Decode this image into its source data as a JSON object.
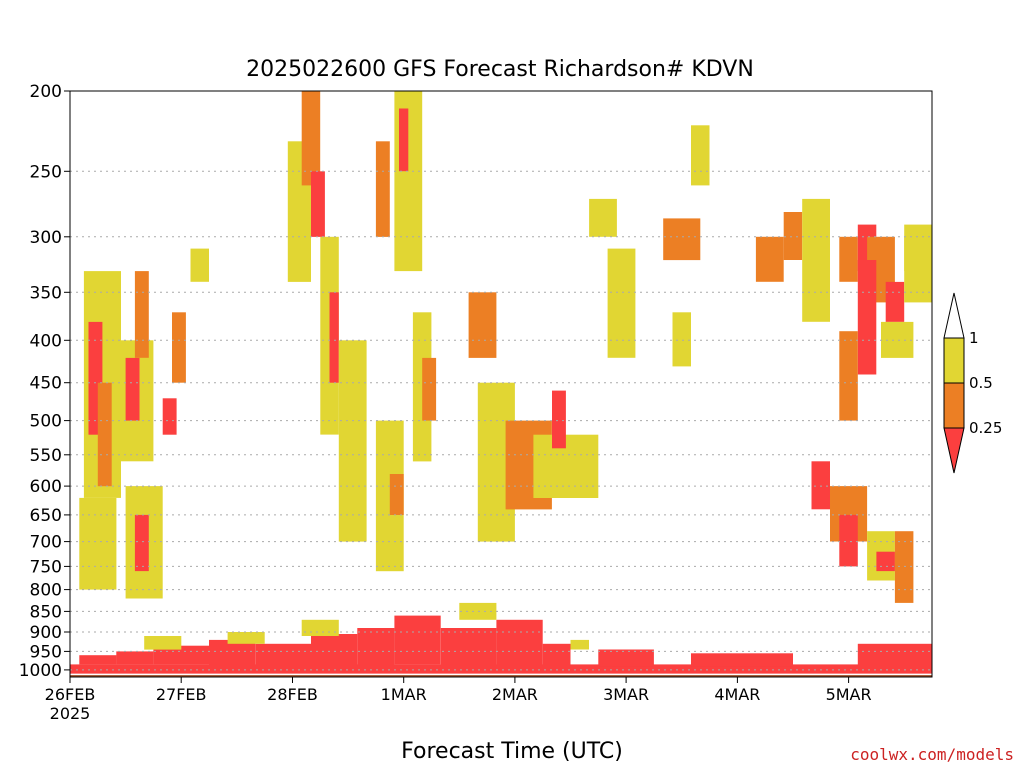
{
  "chart_data": {
    "type": "heatmap",
    "title": "2025022600 GFS Forecast Richardson# KDVN",
    "xlabel": "Forecast Time (UTC)",
    "ylabel": "",
    "x_ticks": [
      {
        "label": "26FEB",
        "sub": "2025",
        "hours": 0
      },
      {
        "label": "27FEB",
        "sub": "",
        "hours": 24
      },
      {
        "label": "28FEB",
        "sub": "",
        "hours": 48
      },
      {
        "label": "1MAR",
        "sub": "",
        "hours": 72
      },
      {
        "label": "2MAR",
        "sub": "",
        "hours": 96
      },
      {
        "label": "3MAR",
        "sub": "",
        "hours": 120
      },
      {
        "label": "4MAR",
        "sub": "",
        "hours": 144
      },
      {
        "label": "5MAR",
        "sub": "",
        "hours": 168
      }
    ],
    "xlim_hours": [
      0,
      186
    ],
    "y_ticks": [
      200,
      250,
      300,
      350,
      400,
      450,
      500,
      550,
      600,
      650,
      700,
      750,
      800,
      850,
      900,
      950,
      1000
    ],
    "ylim_hPa": [
      200,
      1020
    ],
    "y_scale": "log",
    "grid": "dotted horizontal lines at pressure ticks",
    "colorbar": {
      "labels": [
        "1",
        "0.5",
        "0.25"
      ],
      "bins": [
        {
          "range": "0.5-1",
          "color": "#e1d633"
        },
        {
          "range": "0.25-0.5",
          "color": "#ec7f24"
        },
        {
          "range": "<0.25",
          "color": "#fb3f3f"
        }
      ],
      "above_color": "#ffffff",
      "position": "right"
    },
    "ground_color": "#9a4b25",
    "colors": {
      "yellow": "#e1d633",
      "orange": "#ec7f24",
      "red": "#fb3f3f",
      "ground": "#9a4b25"
    },
    "patches": [
      {
        "cat": "r",
        "t": [
          0,
          186
        ],
        "p": [
          985,
          1020
        ]
      },
      {
        "cat": "r",
        "t": [
          2,
          10
        ],
        "p": [
          960,
          985
        ]
      },
      {
        "cat": "r",
        "t": [
          10,
          18
        ],
        "p": [
          950,
          985
        ]
      },
      {
        "cat": "r",
        "t": [
          18,
          30
        ],
        "p": [
          935,
          985
        ]
      },
      {
        "cat": "r",
        "t": [
          30,
          40
        ],
        "p": [
          920,
          985
        ]
      },
      {
        "cat": "r",
        "t": [
          40,
          52
        ],
        "p": [
          930,
          985
        ]
      },
      {
        "cat": "r",
        "t": [
          52,
          62
        ],
        "p": [
          905,
          985
        ]
      },
      {
        "cat": "r",
        "t": [
          62,
          70
        ],
        "p": [
          890,
          985
        ]
      },
      {
        "cat": "r",
        "t": [
          70,
          80
        ],
        "p": [
          860,
          985
        ]
      },
      {
        "cat": "r",
        "t": [
          80,
          92
        ],
        "p": [
          890,
          985
        ]
      },
      {
        "cat": "r",
        "t": [
          92,
          102
        ],
        "p": [
          870,
          985
        ]
      },
      {
        "cat": "r",
        "t": [
          102,
          108
        ],
        "p": [
          930,
          985
        ]
      },
      {
        "cat": "r",
        "t": [
          114,
          126
        ],
        "p": [
          945,
          990
        ]
      },
      {
        "cat": "r",
        "t": [
          134,
          156
        ],
        "p": [
          955,
          990
        ]
      },
      {
        "cat": "r",
        "t": [
          170,
          186
        ],
        "p": [
          930,
          990
        ]
      },
      {
        "cat": "y",
        "t": [
          16,
          24
        ],
        "p": [
          910,
          945
        ]
      },
      {
        "cat": "y",
        "t": [
          34,
          42
        ],
        "p": [
          900,
          930
        ]
      },
      {
        "cat": "y",
        "t": [
          50,
          58
        ],
        "p": [
          870,
          910
        ]
      },
      {
        "cat": "y",
        "t": [
          84,
          92
        ],
        "p": [
          830,
          870
        ]
      },
      {
        "cat": "y",
        "t": [
          108,
          112
        ],
        "p": [
          920,
          945
        ]
      },
      {
        "cat": "y",
        "t": [
          2,
          10
        ],
        "p": [
          620,
          800
        ]
      },
      {
        "cat": "y",
        "t": [
          3,
          11
        ],
        "p": [
          330,
          620
        ]
      },
      {
        "cat": "r",
        "t": [
          4,
          7
        ],
        "p": [
          380,
          520
        ]
      },
      {
        "cat": "o",
        "t": [
          6,
          9
        ],
        "p": [
          450,
          600
        ]
      },
      {
        "cat": "y",
        "t": [
          11,
          18
        ],
        "p": [
          400,
          560
        ]
      },
      {
        "cat": "r",
        "t": [
          12,
          15
        ],
        "p": [
          420,
          500
        ]
      },
      {
        "cat": "o",
        "t": [
          14,
          17
        ],
        "p": [
          330,
          420
        ]
      },
      {
        "cat": "y",
        "t": [
          12,
          20
        ],
        "p": [
          600,
          820
        ]
      },
      {
        "cat": "r",
        "t": [
          14,
          17
        ],
        "p": [
          650,
          760
        ]
      },
      {
        "cat": "r",
        "t": [
          20,
          23
        ],
        "p": [
          470,
          520
        ]
      },
      {
        "cat": "o",
        "t": [
          22,
          25
        ],
        "p": [
          370,
          450
        ]
      },
      {
        "cat": "y",
        "t": [
          26,
          30
        ],
        "p": [
          310,
          340
        ]
      },
      {
        "cat": "y",
        "t": [
          47,
          52
        ],
        "p": [
          230,
          340
        ]
      },
      {
        "cat": "o",
        "t": [
          50,
          54
        ],
        "p": [
          200,
          260
        ]
      },
      {
        "cat": "r",
        "t": [
          52,
          55
        ],
        "p": [
          250,
          300
        ]
      },
      {
        "cat": "y",
        "t": [
          54,
          58
        ],
        "p": [
          300,
          520
        ]
      },
      {
        "cat": "r",
        "t": [
          56,
          58
        ],
        "p": [
          350,
          450
        ]
      },
      {
        "cat": "y",
        "t": [
          58,
          64
        ],
        "p": [
          400,
          700
        ]
      },
      {
        "cat": "o",
        "t": [
          66,
          69
        ],
        "p": [
          230,
          300
        ]
      },
      {
        "cat": "y",
        "t": [
          70,
          76
        ],
        "p": [
          200,
          330
        ]
      },
      {
        "cat": "r",
        "t": [
          71,
          73
        ],
        "p": [
          210,
          250
        ]
      },
      {
        "cat": "y",
        "t": [
          74,
          78
        ],
        "p": [
          370,
          560
        ]
      },
      {
        "cat": "o",
        "t": [
          76,
          79
        ],
        "p": [
          420,
          500
        ]
      },
      {
        "cat": "y",
        "t": [
          66,
          72
        ],
        "p": [
          500,
          760
        ]
      },
      {
        "cat": "o",
        "t": [
          69,
          72
        ],
        "p": [
          580,
          650
        ]
      },
      {
        "cat": "o",
        "t": [
          86,
          92
        ],
        "p": [
          350,
          420
        ]
      },
      {
        "cat": "y",
        "t": [
          88,
          96
        ],
        "p": [
          450,
          700
        ]
      },
      {
        "cat": "o",
        "t": [
          94,
          104
        ],
        "p": [
          500,
          640
        ]
      },
      {
        "cat": "y",
        "t": [
          100,
          114
        ],
        "p": [
          520,
          620
        ]
      },
      {
        "cat": "r",
        "t": [
          104,
          107
        ],
        "p": [
          460,
          540
        ]
      },
      {
        "cat": "y",
        "t": [
          112,
          118
        ],
        "p": [
          270,
          300
        ]
      },
      {
        "cat": "y",
        "t": [
          116,
          122
        ],
        "p": [
          310,
          420
        ]
      },
      {
        "cat": "o",
        "t": [
          128,
          136
        ],
        "p": [
          285,
          320
        ]
      },
      {
        "cat": "y",
        "t": [
          134,
          138
        ],
        "p": [
          220,
          260
        ]
      },
      {
        "cat": "y",
        "t": [
          130,
          134
        ],
        "p": [
          370,
          430
        ]
      },
      {
        "cat": "o",
        "t": [
          148,
          154
        ],
        "p": [
          300,
          340
        ]
      },
      {
        "cat": "o",
        "t": [
          154,
          158
        ],
        "p": [
          280,
          320
        ]
      },
      {
        "cat": "y",
        "t": [
          158,
          164
        ],
        "p": [
          270,
          380
        ]
      },
      {
        "cat": "o",
        "t": [
          166,
          170
        ],
        "p": [
          300,
          340
        ]
      },
      {
        "cat": "r",
        "t": [
          170,
          174
        ],
        "p": [
          290,
          330
        ]
      },
      {
        "cat": "o",
        "t": [
          172,
          178
        ],
        "p": [
          300,
          360
        ]
      },
      {
        "cat": "r",
        "t": [
          176,
          180
        ],
        "p": [
          340,
          380
        ]
      },
      {
        "cat": "y",
        "t": [
          180,
          186
        ],
        "p": [
          290,
          330
        ]
      },
      {
        "cat": "r",
        "t": [
          160,
          164
        ],
        "p": [
          560,
          640
        ]
      },
      {
        "cat": "o",
        "t": [
          164,
          172
        ],
        "p": [
          600,
          700
        ]
      },
      {
        "cat": "r",
        "t": [
          166,
          170
        ],
        "p": [
          650,
          750
        ]
      },
      {
        "cat": "y",
        "t": [
          172,
          178
        ],
        "p": [
          680,
          780
        ]
      },
      {
        "cat": "r",
        "t": [
          174,
          178
        ],
        "p": [
          720,
          760
        ]
      },
      {
        "cat": "o",
        "t": [
          178,
          182
        ],
        "p": [
          680,
          830
        ]
      },
      {
        "cat": "r",
        "t": [
          170,
          174
        ],
        "p": [
          320,
          440
        ]
      },
      {
        "cat": "o",
        "t": [
          166,
          170
        ],
        "p": [
          390,
          500
        ]
      },
      {
        "cat": "y",
        "t": [
          175,
          182
        ],
        "p": [
          380,
          420
        ]
      },
      {
        "cat": "y",
        "t": [
          180,
          186
        ],
        "p": [
          300,
          360
        ]
      }
    ]
  },
  "footer": {
    "credit": "coolwx.com/models"
  },
  "colors": {
    "credit": "#cc2222"
  }
}
